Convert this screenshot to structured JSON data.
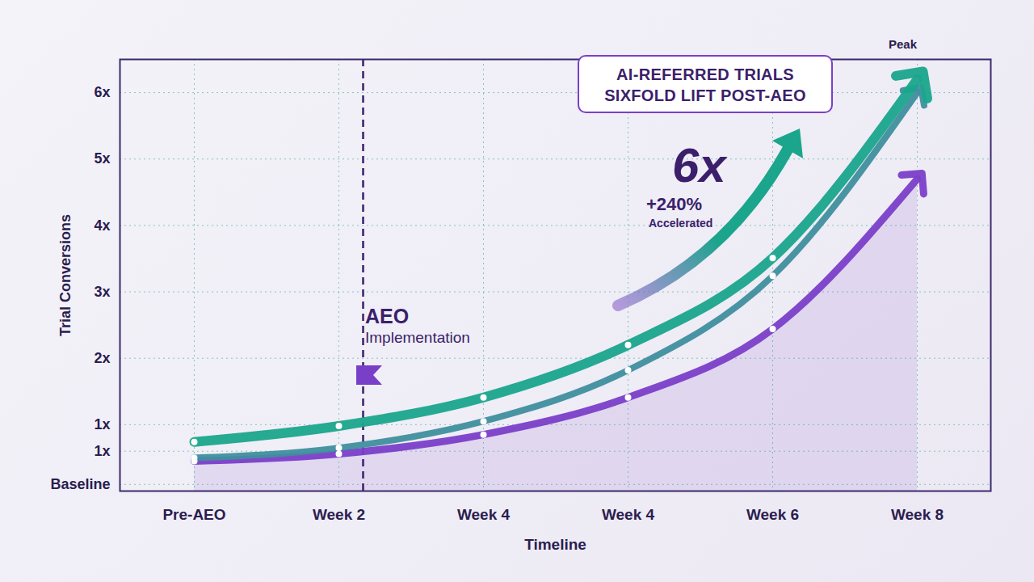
{
  "chart_data": {
    "type": "line",
    "x_label": "Timeline",
    "y_label": "Trial Conversions",
    "categories": [
      "Pre-AEO",
      "Week 2",
      "Week 4",
      "Week 4",
      "Week 6",
      "Week 8"
    ],
    "series": [
      {
        "color": "#1aa58c",
        "marker": "arrow",
        "values": [
          0.74,
          0.98,
          1.41,
          2.2,
          3.51,
          6.2
        ]
      },
      {
        "color": "#3f8f9e",
        "marker": "arrow",
        "values": [
          0.5,
          0.65,
          1.05,
          1.82,
          3.24,
          6.0
        ]
      },
      {
        "color": "#7a3fc8",
        "marker": "arrow",
        "values": [
          0.45,
          0.56,
          0.85,
          1.41,
          2.44,
          4.7
        ]
      }
    ],
    "ylim": [
      0,
      6.5
    ],
    "yticks": [
      {
        "value": 0.1,
        "label": "Baseline"
      },
      {
        "value": 0.6,
        "label": "1x"
      },
      {
        "value": 1,
        "label": "1x"
      },
      {
        "value": 2,
        "label": "2x"
      },
      {
        "value": 3,
        "label": "3x"
      },
      {
        "value": 4,
        "label": "4x"
      },
      {
        "value": 5,
        "label": "5x"
      },
      {
        "value": 6,
        "label": "6x"
      }
    ],
    "grid": true,
    "annotations": {
      "callout": "AI-REFERRED TRIALS SIXFOLD LIFT POST-AEO",
      "peak": "Peak",
      "multiplier": "6x",
      "change": "+240%",
      "change_note": "Accelerated",
      "event": "AEO Implementation"
    }
  }
}
